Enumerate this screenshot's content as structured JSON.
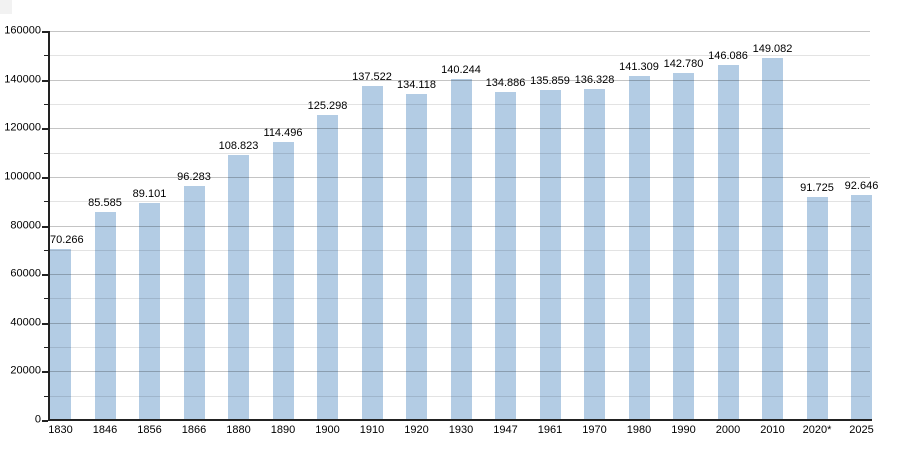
{
  "chart_data": {
    "type": "bar",
    "title": "",
    "xlabel": "",
    "ylabel": "",
    "categories": [
      "1830",
      "1846",
      "1856",
      "1866",
      "1880",
      "1890",
      "1900",
      "1910",
      "1920",
      "1930",
      "1947",
      "1961",
      "1970",
      "1980",
      "1990",
      "2000",
      "2010",
      "2020*",
      "2025"
    ],
    "values": [
      70266,
      85585,
      89101,
      96283,
      108823,
      114496,
      125298,
      137522,
      134118,
      140244,
      134886,
      135859,
      136328,
      141309,
      142780,
      146086,
      149082,
      91725,
      92646
    ],
    "value_labels": [
      "70.266",
      "85.585",
      "89.101",
      "96.283",
      "108.823",
      "114.496",
      "125.298",
      "137.522",
      "134.118",
      "140.244",
      "134.886",
      "135.859",
      "136.328",
      "141.309",
      "142.780",
      "146.086",
      "149.082",
      "91.725",
      "92.646"
    ],
    "ylim": [
      0,
      160000
    ],
    "ytick_major_step": 20000,
    "ytick_minor_step": 10000,
    "ytick_labels": [
      "0",
      "20000",
      "40000",
      "60000",
      "80000",
      "100000",
      "120000",
      "140000",
      "160000"
    ],
    "grid": "horizontal-on",
    "legend": "none",
    "colors": {
      "bar_fill": "#b3cce4",
      "gridline_major": "#c4c4c4",
      "gridline_minor": "#e3e3e3",
      "axis": "#222222",
      "text": "#000000",
      "background": "#ffffff",
      "corner_artifact": "#f2f2f2"
    }
  }
}
